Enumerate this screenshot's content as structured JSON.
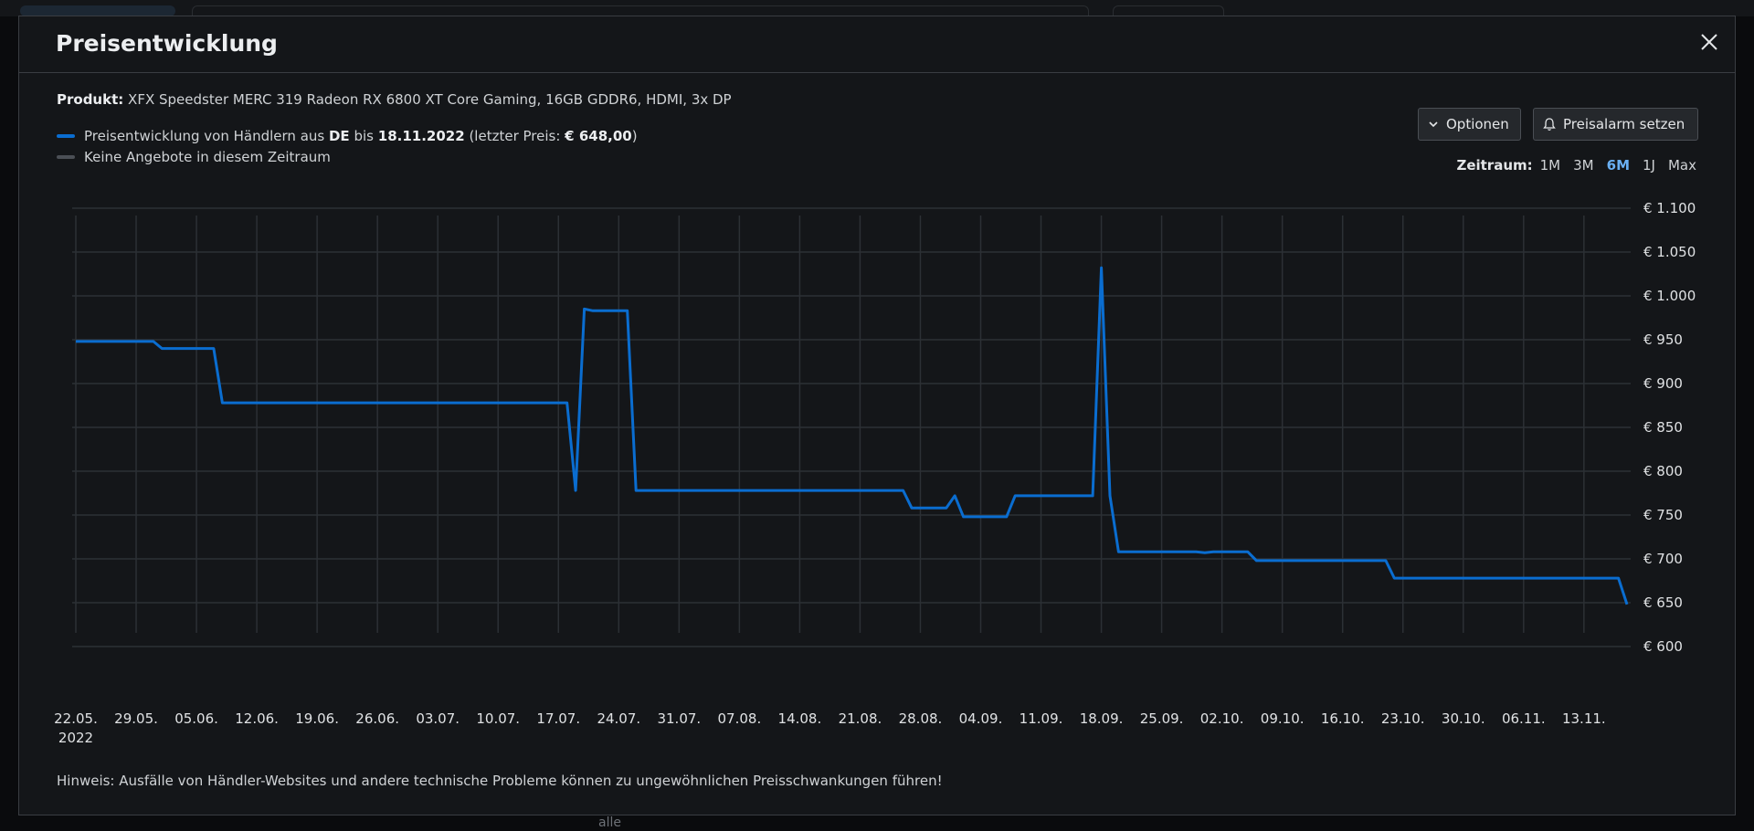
{
  "modal": {
    "title": "Preisentwicklung"
  },
  "product": {
    "label": "Produkt:",
    "name": "XFX Speedster MERC 319 Radeon RX 6800 XT Core Gaming, 16GB GDDR6, HDMI, 3x DP"
  },
  "legend": {
    "series_prefix": "Preisentwicklung von Händlern aus",
    "country": "DE",
    "until": "bis",
    "date": "18.11.2022",
    "last_price_open": "(letzter Preis:",
    "last_price": "€ 648,00",
    "last_price_close": ")",
    "no_offers": "Keine Angebote in diesem Zeitraum",
    "series_color": "#0a6dd0",
    "no_offers_color": "#4b4f55"
  },
  "buttons": {
    "options": "Optionen",
    "options_icon": "chevron-down-icon",
    "alarm": "Preisalarm setzen",
    "alarm_icon": "bell-icon"
  },
  "zeitraum": {
    "label": "Zeitraum:",
    "options": [
      "1M",
      "3M",
      "6M",
      "1J",
      "Max"
    ],
    "active": "6M"
  },
  "hint": "Hinweis: Ausfälle von Händler-Websites und andere technische Probleme können zu ungewöhnlichen Preisschwankungen führen!",
  "chart_data": {
    "type": "line",
    "series": [
      {
        "points": [
          [
            "22.05.2022",
            948
          ],
          [
            "31.05.2022",
            948
          ],
          [
            "01.06.2022",
            940
          ],
          [
            "07.06.2022",
            940
          ],
          [
            "08.06.2022",
            878
          ],
          [
            "18.07.2022",
            878
          ],
          [
            "19.07.2022",
            778
          ],
          [
            "20.07.2022",
            985
          ],
          [
            "21.07.2022",
            983
          ],
          [
            "25.07.2022",
            983
          ],
          [
            "26.07.2022",
            778
          ],
          [
            "26.08.2022",
            778
          ],
          [
            "27.08.2022",
            758
          ],
          [
            "31.08.2022",
            758
          ],
          [
            "01.09.2022",
            772
          ],
          [
            "02.09.2022",
            748
          ],
          [
            "07.09.2022",
            748
          ],
          [
            "08.09.2022",
            772
          ],
          [
            "17.09.2022",
            772
          ],
          [
            "18.09.2022",
            1032
          ],
          [
            "19.09.2022",
            772
          ],
          [
            "20.09.2022",
            708
          ],
          [
            "29.09.2022",
            708
          ],
          [
            "30.09.2022",
            707
          ],
          [
            "01.10.2022",
            708
          ],
          [
            "05.10.2022",
            708
          ],
          [
            "06.10.2022",
            698
          ],
          [
            "21.10.2022",
            698
          ],
          [
            "22.10.2022",
            678
          ],
          [
            "17.11.2022",
            678
          ],
          [
            "18.11.2022",
            648
          ]
        ]
      }
    ],
    "y_ticks": [
      "€ 1.100",
      "€ 1.050",
      "€ 1.000",
      "€ 950",
      "€ 900",
      "€ 850",
      "€ 800",
      "€ 750",
      "€ 700",
      "€ 650",
      "€ 600"
    ],
    "y_tick_values": [
      1100,
      1050,
      1000,
      950,
      900,
      850,
      800,
      750,
      700,
      650,
      600
    ],
    "ylim": [
      600,
      1100
    ],
    "x_ticks": [
      "22.05.",
      "29.05.",
      "05.06.",
      "12.06.",
      "19.06.",
      "26.06.",
      "03.07.",
      "10.07.",
      "17.07.",
      "24.07.",
      "31.07.",
      "07.08.",
      "14.08.",
      "21.08.",
      "28.08.",
      "04.09.",
      "11.09.",
      "18.09.",
      "25.09.",
      "02.10.",
      "09.10.",
      "16.10.",
      "23.10.",
      "30.10.",
      "06.11.",
      "13.11."
    ],
    "x_tick_dates": [
      "22.05.2022",
      "29.05.2022",
      "05.06.2022",
      "12.06.2022",
      "19.06.2022",
      "26.06.2022",
      "03.07.2022",
      "10.07.2022",
      "17.07.2022",
      "24.07.2022",
      "31.07.2022",
      "07.08.2022",
      "14.08.2022",
      "21.08.2022",
      "28.08.2022",
      "04.09.2022",
      "11.09.2022",
      "18.09.2022",
      "25.09.2022",
      "02.10.2022",
      "09.10.2022",
      "16.10.2022",
      "23.10.2022",
      "30.10.2022",
      "06.11.2022",
      "13.11.2022"
    ],
    "x_year_label": "2022",
    "xlim": [
      "22.05.2022",
      "18.11.2022"
    ],
    "grid": true,
    "line_color": "#0a6dd0",
    "grid_color": "#2c3035"
  }
}
